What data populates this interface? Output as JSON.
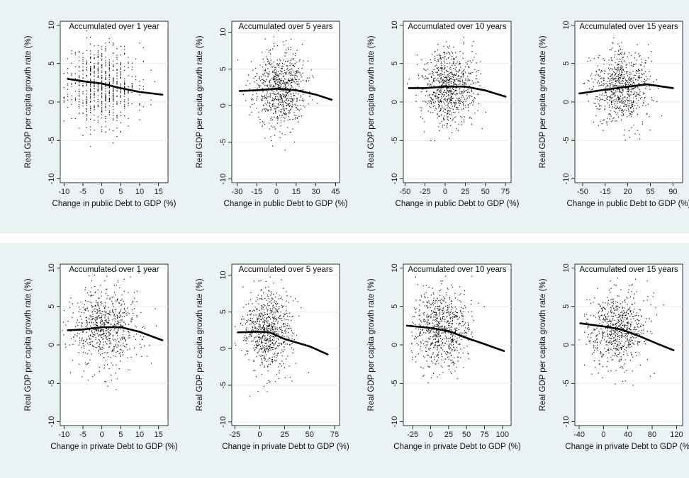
{
  "figure": {
    "ylabel": "Real GDP per capita growth rate (%)",
    "xlabel_public": "Change in public Debt to GDP (%)",
    "xlabel_private": "Change in private Debt to GDP (%)"
  },
  "chart_data": [
    {
      "type": "scatter",
      "row": "public",
      "title": "Accumulated over 1 year",
      "xlabel": "Change in public Debt to GDP (%)",
      "ylabel": "Real GDP per capita growth rate (%)",
      "xlim": [
        -11,
        17.5
      ],
      "ylim": [
        -10.5,
        10.5
      ],
      "xticks": [
        -10,
        -5,
        0,
        5,
        10,
        15
      ],
      "yticks": [
        -10,
        -5,
        0,
        5,
        10
      ],
      "grid": true,
      "scatter_spread": {
        "x_center": 0,
        "x_sd": 4.5,
        "y_center": 2.3,
        "y_sd": 2.7,
        "n": 700,
        "seed": 11
      },
      "fit_line": {
        "x": [
          -9,
          -5,
          0,
          5,
          10,
          16
        ],
        "y": [
          3.0,
          2.7,
          2.4,
          1.8,
          1.3,
          0.95
        ]
      }
    },
    {
      "type": "scatter",
      "row": "public",
      "title": "Accumulated over 5 years",
      "xlabel": "Change in public Debt to GDP (%)",
      "ylabel": "Real GDP per capita growth rate (%)",
      "xlim": [
        -34,
        48
      ],
      "ylim": [
        -10.5,
        11.5
      ],
      "xticks": [
        -30,
        -15,
        0,
        15,
        30,
        45
      ],
      "yticks": [
        -10,
        -5,
        0,
        5,
        10
      ],
      "grid": true,
      "scatter_spread": {
        "x_center": 2,
        "x_sd": 10,
        "y_center": 2.2,
        "y_sd": 2.6,
        "n": 750,
        "seed": 23
      },
      "fit_line": {
        "x": [
          -28,
          -15,
          0,
          15,
          30,
          42
        ],
        "y": [
          2.0,
          2.1,
          2.3,
          2.1,
          1.5,
          0.8
        ]
      }
    },
    {
      "type": "scatter",
      "row": "public",
      "title": "Accumulated over 10 years",
      "xlabel": "Change in public Debt to GDP (%)",
      "ylabel": "Real GDP per capita growth rate (%)",
      "xlim": [
        -52,
        82
      ],
      "ylim": [
        -10.5,
        10.5
      ],
      "xticks": [
        -50,
        -25,
        0,
        25,
        50,
        75
      ],
      "yticks": [
        -10,
        -5,
        0,
        5,
        10
      ],
      "grid": true,
      "scatter_spread": {
        "x_center": 5,
        "x_sd": 16,
        "y_center": 2.0,
        "y_sd": 2.4,
        "n": 800,
        "seed": 37
      },
      "fit_line": {
        "x": [
          -45,
          -25,
          0,
          25,
          50,
          75
        ],
        "y": [
          1.8,
          1.8,
          2.0,
          2.0,
          1.5,
          0.7
        ]
      }
    },
    {
      "type": "scatter",
      "row": "public",
      "title": "Accumulated over 15 years",
      "xlabel": "Change in public Debt to GDP (%)",
      "ylabel": "Real GDP per capita growth rate (%)",
      "xlim": [
        -62,
        105
      ],
      "ylim": [
        -10.5,
        10.5
      ],
      "xticks": [
        -50,
        -15,
        20,
        55,
        90
      ],
      "yticks": [
        -10,
        -5,
        0,
        5,
        10
      ],
      "grid": true,
      "scatter_spread": {
        "x_center": 10,
        "x_sd": 22,
        "y_center": 1.9,
        "y_sd": 2.4,
        "n": 750,
        "seed": 41
      },
      "fit_line": {
        "x": [
          -55,
          -15,
          20,
          50,
          90
        ],
        "y": [
          1.1,
          1.6,
          2.0,
          2.3,
          1.8
        ]
      }
    },
    {
      "type": "scatter",
      "row": "private",
      "title": "Accumulated over 1 year",
      "xlabel": "Change in private Debt to GDP (%)",
      "ylabel": "Real GDP per capita growth rate (%)",
      "xlim": [
        -11,
        17.5
      ],
      "ylim": [
        -10.5,
        10.5
      ],
      "xticks": [
        -10,
        -5,
        0,
        5,
        10,
        15
      ],
      "yticks": [
        -10,
        -5,
        0,
        5,
        10
      ],
      "grid": true,
      "scatter_spread": {
        "x_center": 1,
        "x_sd": 4.8,
        "y_center": 2.3,
        "y_sd": 2.7,
        "n": 700,
        "seed": 53
      },
      "fit_line": {
        "x": [
          -9,
          -5,
          0,
          5,
          10,
          16
        ],
        "y": [
          1.9,
          2.0,
          2.3,
          2.3,
          1.7,
          0.6
        ]
      }
    },
    {
      "type": "scatter",
      "row": "private",
      "title": "Accumulated over 5 years",
      "xlabel": "Change in private Debt to GDP (%)",
      "ylabel": "Real GDP per capita growth rate (%)",
      "xlim": [
        -28,
        80
      ],
      "ylim": [
        -10.5,
        11.5
      ],
      "xticks": [
        -25,
        0,
        25,
        50,
        75
      ],
      "yticks": [
        -10,
        -5,
        0,
        5,
        10
      ],
      "grid": true,
      "scatter_spread": {
        "x_center": 8,
        "x_sd": 12,
        "y_center": 2.3,
        "y_sd": 2.6,
        "n": 750,
        "seed": 67
      },
      "fit_line": {
        "x": [
          -22,
          0,
          10,
          25,
          50,
          68
        ],
        "y": [
          2.2,
          2.3,
          2.2,
          1.3,
          0.3,
          -0.8
        ]
      }
    },
    {
      "type": "scatter",
      "row": "private",
      "title": "Accumulated over 10 years",
      "xlabel": "Change in private Debt to GDP (%)",
      "ylabel": "Real GDP per capita growth rate (%)",
      "xlim": [
        -38,
        112
      ],
      "ylim": [
        -10.5,
        10.5
      ],
      "xticks": [
        -25,
        0,
        25,
        50,
        75,
        100
      ],
      "yticks": [
        -10,
        -5,
        0,
        5,
        10
      ],
      "grid": true,
      "scatter_spread": {
        "x_center": 15,
        "x_sd": 20,
        "y_center": 2.2,
        "y_sd": 2.5,
        "n": 750,
        "seed": 79
      },
      "fit_line": {
        "x": [
          -33,
          0,
          25,
          50,
          75,
          102
        ],
        "y": [
          2.5,
          2.2,
          1.8,
          0.9,
          0.1,
          -0.8
        ]
      }
    },
    {
      "type": "scatter",
      "row": "private",
      "title": "Accumulated over 15 years",
      "xlabel": "Change in private Debt to GDP (%)",
      "ylabel": "Real GDP per capita growth rate (%)",
      "xlim": [
        -47,
        130
      ],
      "ylim": [
        -10.5,
        10.5
      ],
      "xticks": [
        -40,
        0,
        40,
        80,
        120
      ],
      "yticks": [
        -10,
        -5,
        0,
        5,
        10
      ],
      "grid": true,
      "scatter_spread": {
        "x_center": 22,
        "x_sd": 25,
        "y_center": 2.0,
        "y_sd": 2.4,
        "n": 700,
        "seed": 97
      },
      "fit_line": {
        "x": [
          -38,
          0,
          30,
          60,
          90,
          115
        ],
        "y": [
          2.8,
          2.4,
          2.0,
          1.1,
          0.1,
          -0.7
        ]
      }
    }
  ]
}
